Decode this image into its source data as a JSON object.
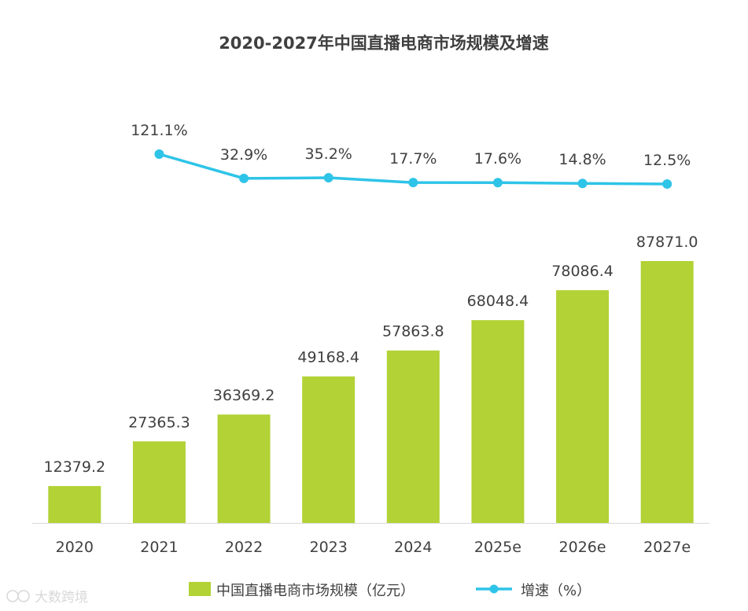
{
  "colors": {
    "bar": "#b2d235",
    "line": "#2ec4e8",
    "text": "#404040",
    "axis": "#d9d9d9"
  },
  "watermark": "大数跨境",
  "chart_data": {
    "type": "bar+line",
    "title": "2020-2027年中国直播电商市场规模及增速",
    "categories": [
      "2020",
      "2021",
      "2022",
      "2023",
      "2024",
      "2025e",
      "2026e",
      "2027e"
    ],
    "series": [
      {
        "name": "中国直播电商市场规模（亿元）",
        "type": "bar",
        "values": [
          12379.2,
          27365.3,
          36369.2,
          49168.4,
          57863.8,
          68048.4,
          78086.4,
          87871.0
        ],
        "labels": [
          "12379.2",
          "27365.3",
          "36369.2",
          "49168.4",
          "57863.8",
          "68048.4",
          "78086.4",
          "87871.0"
        ]
      },
      {
        "name": "增速（%）",
        "type": "line",
        "values": [
          null,
          121.1,
          32.9,
          35.2,
          17.7,
          17.6,
          14.8,
          12.5
        ],
        "labels": [
          "",
          "121.1%",
          "32.9%",
          "35.2%",
          "17.7%",
          "17.6%",
          "14.8%",
          "12.5%"
        ]
      }
    ],
    "legend_position": "bottom",
    "grid": false
  }
}
